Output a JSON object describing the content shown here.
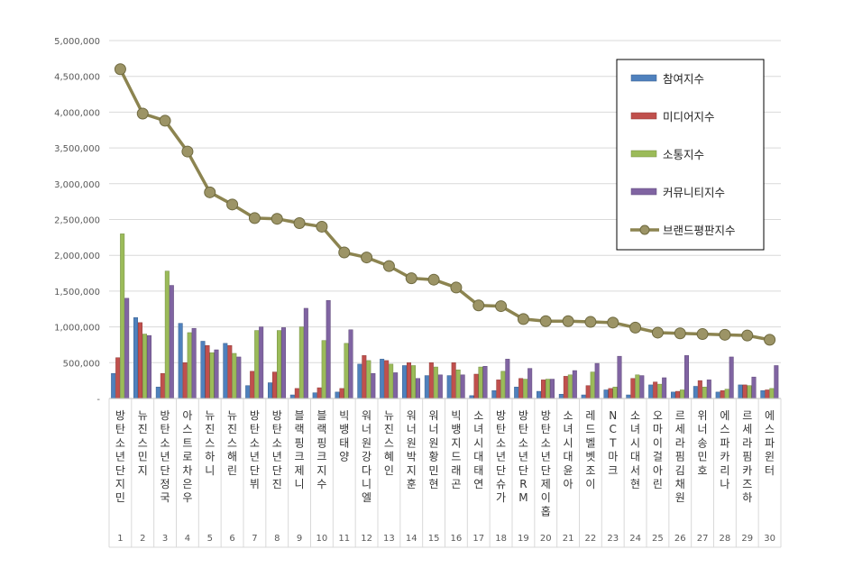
{
  "chart_data": {
    "type": "bar",
    "title": "",
    "xlabel": "",
    "ylabel": "",
    "ylim": [
      0,
      5000000
    ],
    "yticks": [
      0,
      500000,
      1000000,
      1500000,
      2000000,
      2500000,
      3000000,
      3500000,
      4000000,
      4500000,
      5000000
    ],
    "ytick_labels": [
      "-",
      "500,000",
      "1,000,000",
      "1,500,000",
      "2,000,000",
      "2,500,000",
      "3,000,000",
      "3,500,000",
      "4,000,000",
      "4,500,000",
      "5,000,000"
    ],
    "grid": true,
    "legend_position": "top-right",
    "categories": [
      "방탄소년단 지민",
      "뉴진스 민지",
      "방탄소년단 정국",
      "아스트로 차은우",
      "뉴진스 하니",
      "뉴진스 해린",
      "방탄소년단 뷔",
      "방탄소년단 진",
      "블랙핑크 제니",
      "블랙핑크 지수",
      "빅뱅 태양",
      "워너원 강다니엘",
      "뉴진스 혜인",
      "워너원 박지훈",
      "워너원 황민현",
      "빅뱅 지드래곤",
      "소녀시대 태연",
      "방탄소년단 슈가",
      "방탄소년단 RM",
      "방탄소년단 제이홉",
      "소녀시대 윤아",
      "레드벨벳 조이",
      "NCT 마크",
      "소녀시대 서현",
      "오마이걸 아린",
      "르세라핌 김채원",
      "위너 송민호",
      "에스파 카리나",
      "르세라핌 카즈하",
      "에스파 윈터"
    ],
    "ranks": [
      "1",
      "2",
      "3",
      "4",
      "5",
      "6",
      "7",
      "8",
      "9",
      "10",
      "11",
      "12",
      "13",
      "14",
      "15",
      "16",
      "17",
      "18",
      "19",
      "20",
      "21",
      "22",
      "23",
      "24",
      "25",
      "26",
      "27",
      "28",
      "29",
      "30"
    ],
    "series": [
      {
        "name": "참여지수",
        "kind": "bar",
        "color": "#4f81bd",
        "values": [
          350000,
          1130000,
          160000,
          1050000,
          800000,
          770000,
          180000,
          220000,
          50000,
          80000,
          90000,
          480000,
          550000,
          460000,
          320000,
          320000,
          40000,
          110000,
          160000,
          100000,
          60000,
          50000,
          120000,
          50000,
          190000,
          90000,
          170000,
          90000,
          190000,
          110000
        ]
      },
      {
        "name": "미디어지수",
        "kind": "bar",
        "color": "#c0504d",
        "values": [
          570000,
          1060000,
          350000,
          500000,
          740000,
          740000,
          380000,
          370000,
          140000,
          150000,
          140000,
          600000,
          530000,
          500000,
          500000,
          500000,
          340000,
          260000,
          280000,
          260000,
          310000,
          180000,
          140000,
          280000,
          230000,
          100000,
          250000,
          110000,
          190000,
          120000
        ]
      },
      {
        "name": "소통지수",
        "kind": "bar",
        "color": "#9bbb59",
        "values": [
          2300000,
          900000,
          1780000,
          920000,
          640000,
          630000,
          950000,
          950000,
          1000000,
          810000,
          770000,
          530000,
          480000,
          460000,
          440000,
          400000,
          440000,
          380000,
          270000,
          270000,
          330000,
          370000,
          160000,
          330000,
          200000,
          120000,
          160000,
          130000,
          180000,
          140000
        ]
      },
      {
        "name": "커뮤니티지수",
        "kind": "bar",
        "color": "#8064a2",
        "values": [
          1400000,
          880000,
          1580000,
          980000,
          680000,
          580000,
          1000000,
          990000,
          1260000,
          1370000,
          960000,
          350000,
          360000,
          280000,
          330000,
          330000,
          450000,
          550000,
          420000,
          270000,
          390000,
          490000,
          590000,
          320000,
          290000,
          600000,
          260000,
          580000,
          300000,
          460000
        ]
      },
      {
        "name": "브랜드평판지수",
        "kind": "line",
        "color": "#8c8450",
        "values": [
          4600000,
          3980000,
          3880000,
          3450000,
          2880000,
          2710000,
          2520000,
          2510000,
          2450000,
          2400000,
          2040000,
          1970000,
          1850000,
          1680000,
          1660000,
          1550000,
          1300000,
          1290000,
          1110000,
          1080000,
          1080000,
          1070000,
          1060000,
          990000,
          920000,
          910000,
          900000,
          890000,
          880000,
          820000
        ]
      }
    ]
  }
}
